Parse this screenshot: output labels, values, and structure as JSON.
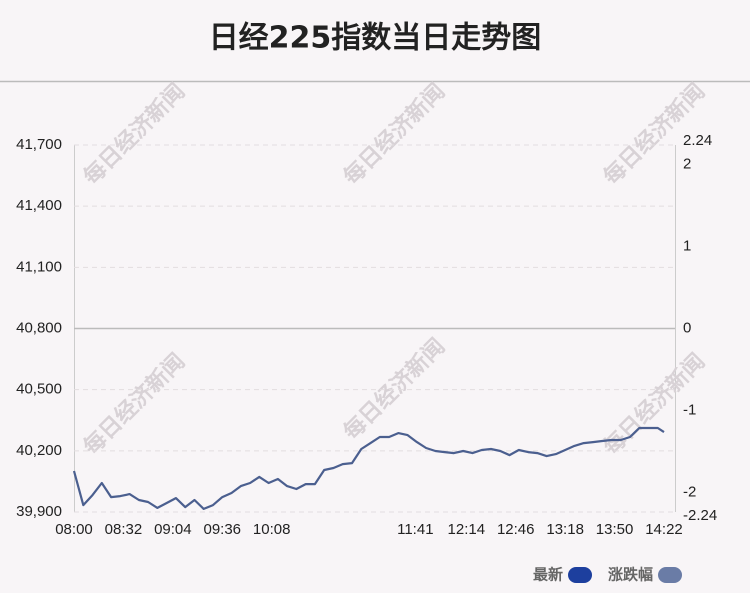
{
  "chart_data": {
    "type": "line",
    "title": "日经225指数当日走势图",
    "watermark": "每日经济新闻",
    "x": [
      "08:00",
      "08:06",
      "08:12",
      "08:18",
      "08:24",
      "08:30",
      "08:36",
      "08:42",
      "08:48",
      "08:54",
      "09:00",
      "09:06",
      "09:12",
      "09:18",
      "09:24",
      "09:30",
      "09:36",
      "09:42",
      "09:48",
      "09:54",
      "10:00",
      "10:06",
      "10:12",
      "10:18",
      "10:24",
      "10:30",
      "10:36",
      "10:42",
      "10:48",
      "10:54",
      "11:00",
      "11:06",
      "11:12",
      "11:18",
      "11:24",
      "11:30",
      "11:36",
      "11:42",
      "11:48",
      "11:54",
      "12:00",
      "12:06",
      "12:12",
      "12:18",
      "12:24",
      "12:30",
      "12:36",
      "12:42",
      "12:48",
      "12:54",
      "13:00",
      "13:06",
      "13:12",
      "13:18",
      "13:24",
      "13:30",
      "13:36",
      "13:42",
      "13:48",
      "13:54",
      "14:00",
      "14:06",
      "14:12",
      "14:18",
      "14:22"
    ],
    "series": [
      {
        "name": "最新",
        "color": "#4b5f8f",
        "values": [
          40101,
          39934,
          39983,
          40042,
          39973,
          39978,
          39988,
          39959,
          39949,
          39920,
          39944,
          39968,
          39924,
          39959,
          39915,
          39934,
          39973,
          39993,
          40027,
          40042,
          40072,
          40042,
          40062,
          40027,
          40013,
          40037,
          40037,
          40106,
          40116,
          40135,
          40140,
          40209,
          40238,
          40268,
          40268,
          40287,
          40277,
          40243,
          40214,
          40199,
          40194,
          40189,
          40199,
          40189,
          40204,
          40209,
          40199,
          40179,
          40204,
          40194,
          40189,
          40174,
          40184,
          40204,
          40224,
          40238,
          40243,
          40248,
          40253,
          40253,
          40268,
          40312,
          40312,
          40312,
          40292
        ]
      },
      {
        "name": "涨跌幅",
        "color": "#6a7ca6",
        "axis": "y2"
      }
    ],
    "legend_color_main": "#1d3f9e",
    "xticks": [
      "08:00",
      "08:32",
      "09:04",
      "09:36",
      "10:08",
      "11:41",
      "12:14",
      "12:46",
      "13:18",
      "13:50",
      "14:22"
    ],
    "ylim": [
      39900,
      41700
    ],
    "yticks": [
      {
        "value": 39900,
        "label": "39,900"
      },
      {
        "value": 40200,
        "label": "40,200"
      },
      {
        "value": 40500,
        "label": "40,500"
      },
      {
        "value": 40800,
        "label": "40,800"
      },
      {
        "value": 41100,
        "label": "41,100"
      },
      {
        "value": 41400,
        "label": "41,400"
      },
      {
        "value": 41700,
        "label": "41,700"
      }
    ],
    "y2lim": [
      -2.24,
      2.24
    ],
    "y2ticks": [
      -2.24,
      -2,
      -1,
      0,
      1,
      2,
      2.24
    ],
    "grid": true
  }
}
